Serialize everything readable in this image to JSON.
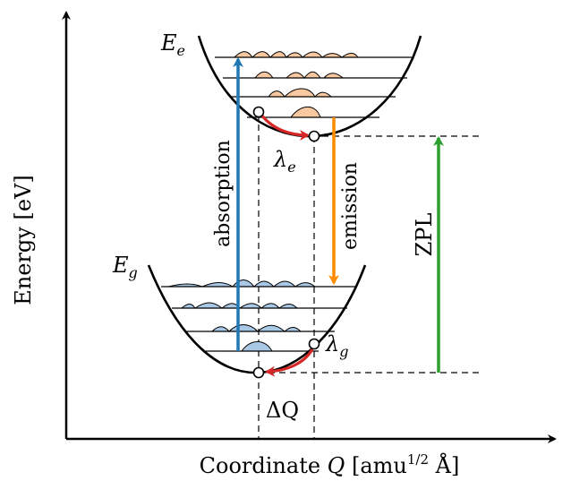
{
  "axes": {
    "y_label": "Energy [eV]",
    "x_label_prefix": "Coordinate ",
    "x_label_symbol": "Q",
    "x_label_units_open": " [amu",
    "x_label_units_exp": "1/2",
    "x_label_units_close": " Å]"
  },
  "labels": {
    "excited_state": "E",
    "excited_state_sub": "e",
    "ground_state": "E",
    "ground_state_sub": "g",
    "lambda_e": "λ",
    "lambda_e_sub": "e",
    "lambda_g": "λ",
    "lambda_g_sub": "g",
    "delta_q": "ΔQ"
  },
  "transitions": {
    "absorption": "absorption",
    "emission": "emission",
    "zpl": "ZPL"
  },
  "colors": {
    "absorption": "#1f77b4",
    "emission": "#ff8c00",
    "zpl": "#2ca02c",
    "relaxation": "#d62728",
    "excited_wavefunction_fill": "#f8c9a0",
    "ground_wavefunction_fill": "#a9c8e6"
  }
}
